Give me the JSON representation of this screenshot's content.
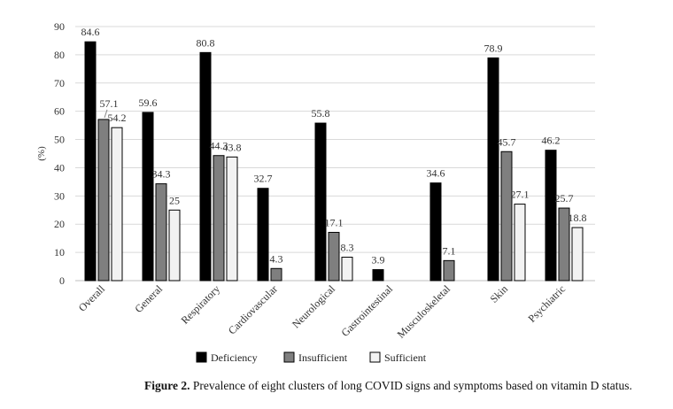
{
  "chart_data": {
    "type": "bar",
    "title": "",
    "xlabel": "",
    "ylabel": "(%)",
    "ylim": [
      0,
      90
    ],
    "yticks": [
      0,
      10,
      20,
      30,
      40,
      50,
      60,
      70,
      80,
      90
    ],
    "grid": true,
    "legend_position": "bottom",
    "categories": [
      "Overall",
      "General",
      "Respiratory",
      "Cardiovascular",
      "Neurological",
      "Gastrointestinal",
      "Musculoskeletal",
      "Skin",
      "Psychiatric"
    ],
    "series": [
      {
        "name": "Deficiency",
        "color": "#000000",
        "values": [
          84.6,
          59.6,
          80.8,
          32.7,
          55.8,
          3.9,
          34.6,
          78.9,
          46.2
        ]
      },
      {
        "name": "Insufficient",
        "color": "#7f7f7f",
        "values": [
          57.1,
          34.3,
          44.3,
          4.3,
          17.1,
          null,
          7.1,
          45.7,
          25.7
        ]
      },
      {
        "name": "Sufficient",
        "color": "#f2f2f2",
        "values": [
          54.2,
          25,
          43.8,
          null,
          8.3,
          null,
          null,
          27.1,
          18.8
        ]
      }
    ]
  },
  "caption": {
    "label": "Figure 2.",
    "text": " Prevalence of eight clusters of long COVID signs and symptoms based on vitamin D status."
  }
}
